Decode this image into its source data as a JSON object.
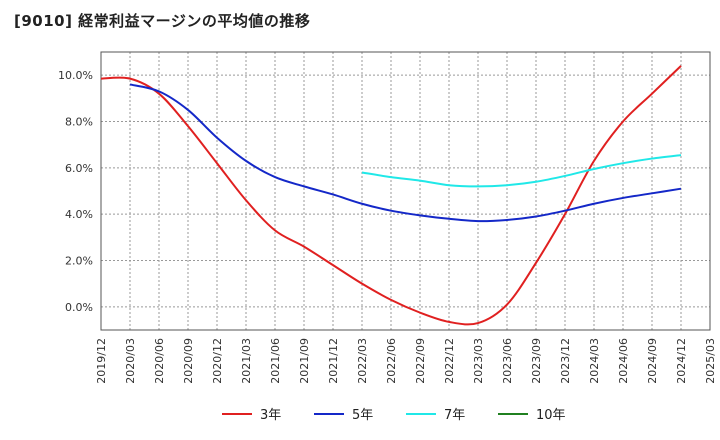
{
  "title": "[9010]  経常利益マージンの平均値の推移",
  "chart_data": {
    "type": "line",
    "title": "[9010]  経常利益マージンの平均値の推移",
    "xlabel": "",
    "ylabel": "",
    "x_ticks": [
      "2019/12",
      "2020/03",
      "2020/06",
      "2020/09",
      "2020/12",
      "2021/03",
      "2021/06",
      "2021/09",
      "2021/12",
      "2022/03",
      "2022/06",
      "2022/09",
      "2022/12",
      "2023/03",
      "2023/06",
      "2023/09",
      "2023/12",
      "2024/03",
      "2024/06",
      "2024/09",
      "2024/12",
      "2025/03"
    ],
    "y_ticks": [
      "0.0%",
      "2.0%",
      "4.0%",
      "6.0%",
      "8.0%",
      "10.0%"
    ],
    "ylim": [
      -1.0,
      11.0
    ],
    "grid": true,
    "legend_position": "bottom",
    "series": [
      {
        "name": "3年",
        "color": "#e02020",
        "points": [
          [
            "2019/12",
            9.85
          ],
          [
            "2020/03",
            9.85
          ],
          [
            "2020/06",
            9.2
          ],
          [
            "2020/09",
            7.8
          ],
          [
            "2020/12",
            6.2
          ],
          [
            "2021/03",
            4.6
          ],
          [
            "2021/06",
            3.3
          ],
          [
            "2021/09",
            2.6
          ],
          [
            "2021/12",
            1.8
          ],
          [
            "2022/03",
            1.0
          ],
          [
            "2022/06",
            0.3
          ],
          [
            "2022/09",
            -0.25
          ],
          [
            "2022/12",
            -0.65
          ],
          [
            "2023/03",
            -0.7
          ],
          [
            "2023/06",
            0.1
          ],
          [
            "2023/09",
            1.9
          ],
          [
            "2023/12",
            4.0
          ],
          [
            "2024/03",
            6.3
          ],
          [
            "2024/06",
            8.0
          ],
          [
            "2024/09",
            9.2
          ],
          [
            "2024/12",
            10.4
          ]
        ]
      },
      {
        "name": "5年",
        "color": "#1428c8",
        "points": [
          [
            "2020/03",
            9.6
          ],
          [
            "2020/06",
            9.3
          ],
          [
            "2020/09",
            8.5
          ],
          [
            "2020/12",
            7.3
          ],
          [
            "2021/03",
            6.3
          ],
          [
            "2021/06",
            5.6
          ],
          [
            "2021/09",
            5.2
          ],
          [
            "2021/12",
            4.85
          ],
          [
            "2022/03",
            4.45
          ],
          [
            "2022/06",
            4.15
          ],
          [
            "2022/09",
            3.95
          ],
          [
            "2022/12",
            3.8
          ],
          [
            "2023/03",
            3.7
          ],
          [
            "2023/06",
            3.75
          ],
          [
            "2023/09",
            3.9
          ],
          [
            "2023/12",
            4.15
          ],
          [
            "2024/03",
            4.45
          ],
          [
            "2024/06",
            4.7
          ],
          [
            "2024/09",
            4.9
          ],
          [
            "2024/12",
            5.1
          ]
        ]
      },
      {
        "name": "7年",
        "color": "#20e8e8",
        "points": [
          [
            "2022/03",
            5.8
          ],
          [
            "2022/06",
            5.6
          ],
          [
            "2022/09",
            5.45
          ],
          [
            "2022/12",
            5.25
          ],
          [
            "2023/03",
            5.2
          ],
          [
            "2023/06",
            5.25
          ],
          [
            "2023/09",
            5.4
          ],
          [
            "2023/12",
            5.65
          ],
          [
            "2024/03",
            5.95
          ],
          [
            "2024/06",
            6.2
          ],
          [
            "2024/09",
            6.4
          ],
          [
            "2024/12",
            6.55
          ]
        ]
      },
      {
        "name": "10年",
        "color": "#208020",
        "points": []
      }
    ]
  }
}
